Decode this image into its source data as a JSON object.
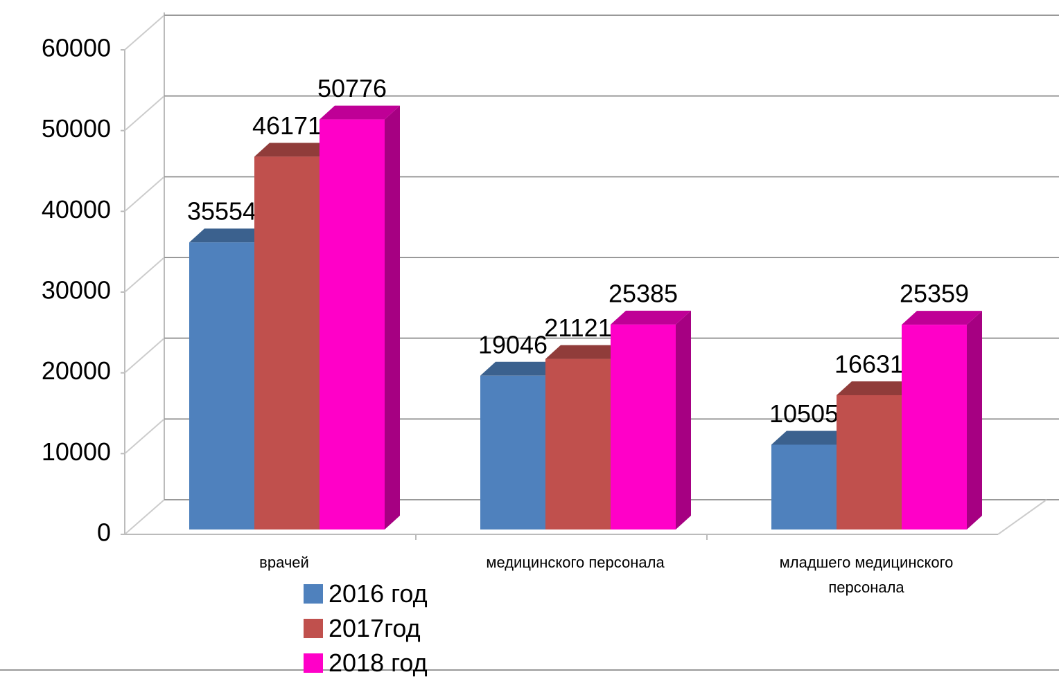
{
  "chart_data": {
    "type": "bar3d",
    "categories": [
      "врачей",
      "медицинского персонала",
      "младшего медицинского персонала"
    ],
    "series": [
      {
        "name": "2016 год",
        "color": "#4f81bd",
        "values": [
          35554,
          19046,
          10505
        ]
      },
      {
        "name": "2017год",
        "color": "#c0504d",
        "values": [
          46171,
          21121,
          16631
        ]
      },
      {
        "name": "2018 год",
        "color": "#ff00c8",
        "values": [
          50776,
          25385,
          25359
        ]
      }
    ],
    "ylim": [
      0,
      60000
    ],
    "yticks": [
      0,
      10000,
      20000,
      30000,
      40000,
      50000,
      60000
    ],
    "grid": true
  }
}
